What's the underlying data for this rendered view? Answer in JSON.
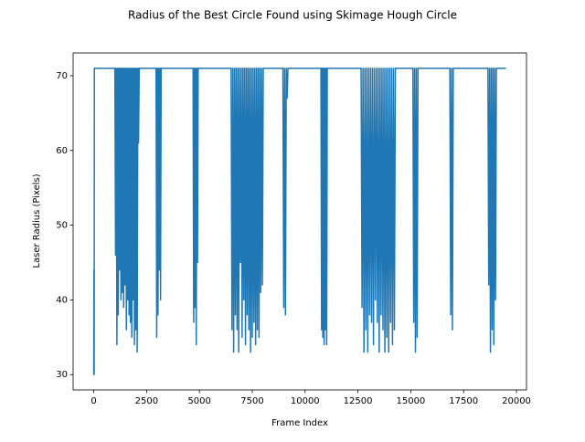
{
  "chart_data": {
    "type": "line",
    "title": "Radius of the Best Circle Found using Skimage Hough Circle",
    "x_label": "Frame Index",
    "y_label": "Laser Radius (Pixels)",
    "xlim": [
      -975,
      20475
    ],
    "ylim": [
      27.95,
      73.05
    ],
    "xticks": [
      0,
      2500,
      5000,
      7500,
      10000,
      12500,
      15000,
      17500,
      20000
    ],
    "yticks": [
      30,
      40,
      50,
      60,
      70
    ],
    "x": [
      0,
      10,
      20,
      30,
      60,
      1000,
      1032,
      1064,
      1096,
      1128,
      1160,
      1192,
      1224,
      1256,
      1288,
      1320,
      1352,
      1384,
      1416,
      1448,
      1480,
      1512,
      1544,
      1576,
      1608,
      1640,
      1672,
      1704,
      1736,
      1768,
      1800,
      1832,
      1864,
      1896,
      1928,
      1960,
      1992,
      2024,
      2056,
      2088,
      2120,
      2152,
      2950,
      2980,
      3010,
      3040,
      3070,
      3100,
      3130,
      3160,
      3190,
      4700,
      4730,
      4760,
      4790,
      4820,
      4850,
      4880,
      4910,
      4940,
      6500,
      6540,
      6580,
      6620,
      6660,
      6700,
      6740,
      6780,
      6820,
      6860,
      6900,
      6940,
      6980,
      7020,
      7060,
      7100,
      7140,
      7180,
      7220,
      7260,
      7300,
      7340,
      7380,
      7420,
      7460,
      7500,
      7540,
      7580,
      7620,
      7660,
      7700,
      7740,
      7780,
      7820,
      7860,
      7900,
      7940,
      7980,
      8020,
      8950,
      8990,
      9030,
      9070,
      9110,
      9150,
      9190,
      10750,
      10780,
      10810,
      10840,
      10870,
      10900,
      10930,
      10960,
      10990,
      11020,
      11050,
      12650,
      12695,
      12740,
      12785,
      12830,
      12875,
      12920,
      12965,
      13010,
      13055,
      13100,
      13145,
      13190,
      13235,
      13280,
      13325,
      13370,
      13415,
      13460,
      13505,
      13550,
      13595,
      13640,
      13685,
      13730,
      13775,
      13820,
      13865,
      13910,
      13955,
      14000,
      14045,
      14090,
      14135,
      14180,
      14225,
      14270,
      15100,
      15140,
      15180,
      15220,
      15260,
      15300,
      15340,
      16850,
      16890,
      16930,
      16970,
      17010,
      18650,
      18690,
      18730,
      18770,
      18810,
      18850,
      18890,
      18930,
      18970,
      19010,
      19050,
      19500
    ],
    "series": [
      {
        "color": "#1f77b4",
        "values": [
          30,
          44,
          30,
          71,
          71,
          71,
          46,
          71,
          34,
          71,
          38,
          71,
          44,
          71,
          40,
          71,
          41,
          71,
          39,
          71,
          42,
          71,
          36,
          71,
          40,
          71,
          38,
          71,
          37,
          71,
          35,
          71,
          40,
          71,
          34,
          71,
          36,
          71,
          33,
          71,
          61,
          71,
          71,
          35,
          71,
          38,
          71,
          44,
          71,
          40,
          71,
          71,
          37,
          71,
          39,
          71,
          34,
          71,
          45,
          71,
          71,
          36,
          71,
          33,
          71,
          38,
          71,
          36,
          71,
          33,
          71,
          45,
          71,
          35,
          71,
          40,
          71,
          34,
          71,
          38,
          71,
          36,
          71,
          33,
          71,
          35,
          71,
          37,
          71,
          34,
          71,
          36,
          71,
          35,
          71,
          41,
          71,
          42,
          71,
          71,
          39,
          71,
          38,
          71,
          67,
          71,
          71,
          36,
          71,
          35,
          71,
          34,
          71,
          36,
          71,
          34,
          71,
          71,
          39,
          71,
          33,
          71,
          36,
          71,
          33,
          71,
          38,
          71,
          37,
          71,
          34,
          71,
          40,
          71,
          37,
          71,
          33,
          71,
          38,
          71,
          36,
          71,
          33,
          71,
          35,
          71,
          33,
          71,
          37,
          71,
          34,
          71,
          36,
          71,
          71,
          37,
          71,
          33,
          71,
          35,
          71,
          71,
          38,
          71,
          36,
          71,
          71,
          42,
          71,
          33,
          71,
          36,
          71,
          34,
          71,
          40,
          71,
          71
        ]
      }
    ]
  }
}
